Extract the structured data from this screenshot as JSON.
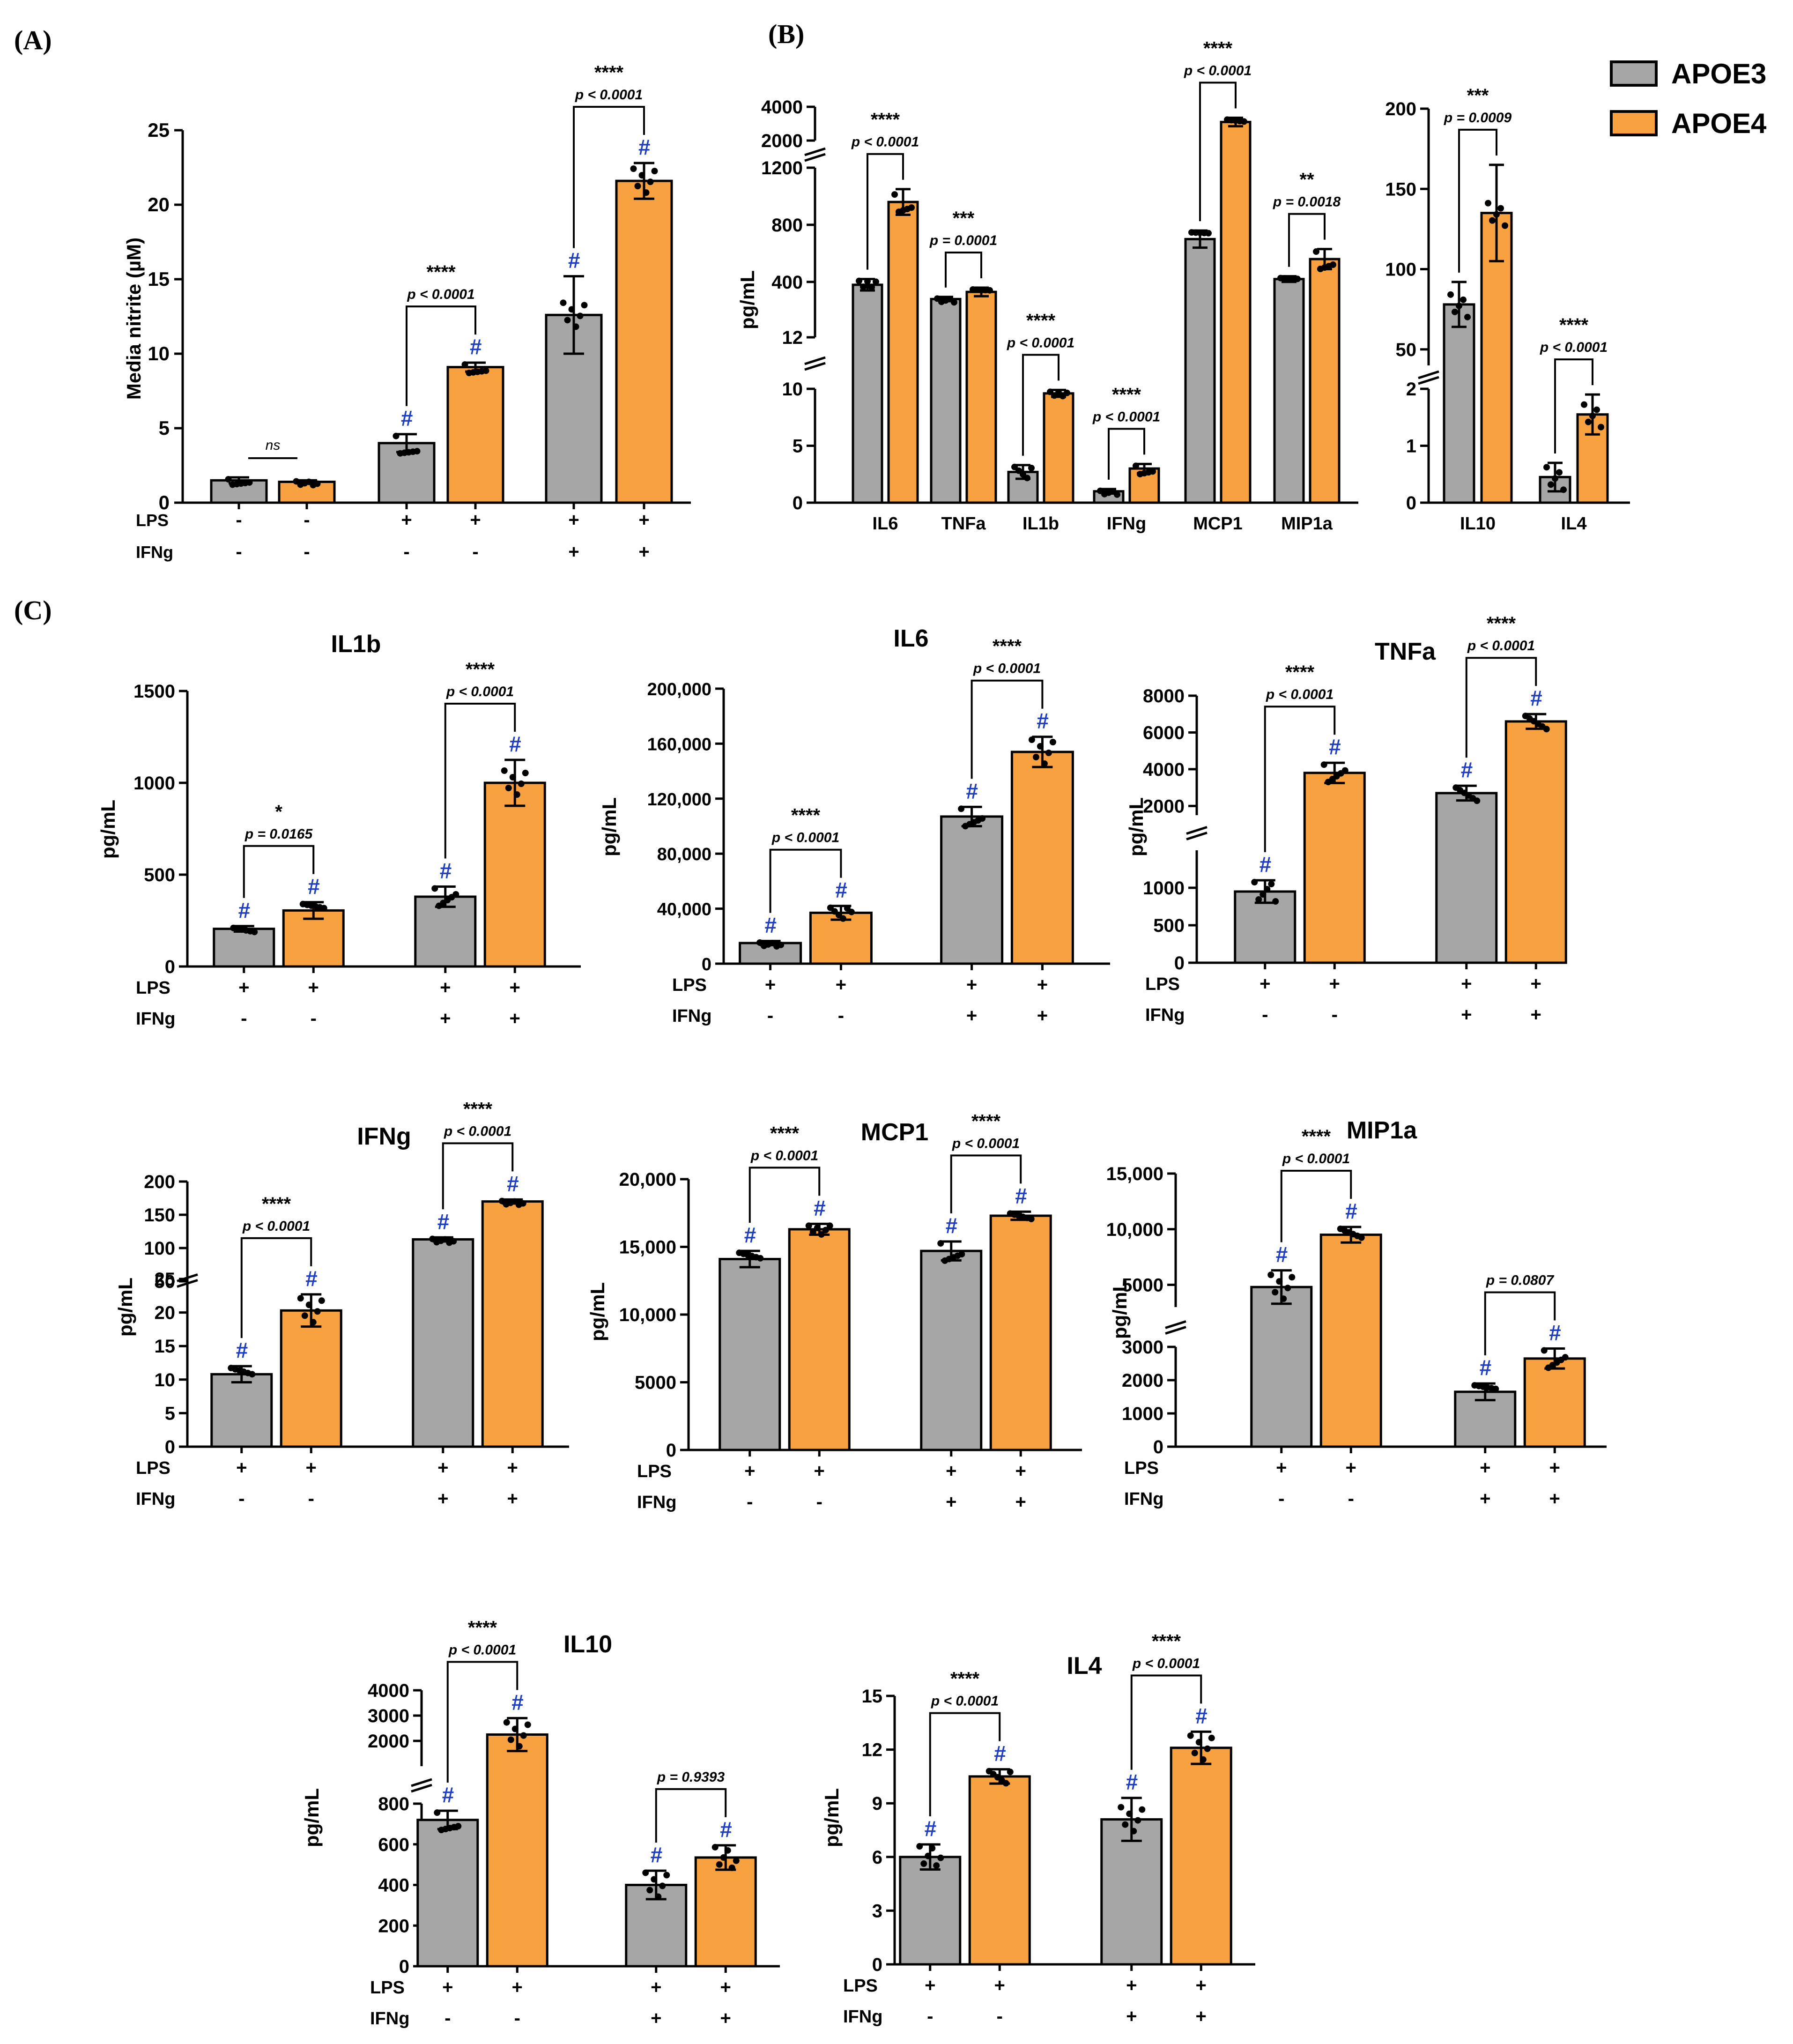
{
  "panel_labels": {
    "a": "(A)",
    "b": "(B)",
    "c": "(C)"
  },
  "legend": [
    {
      "name": "APOE3",
      "color": "#a6a6a6"
    },
    {
      "name": "APOE4",
      "color": "#f7a140"
    }
  ],
  "colors": {
    "apoe3": "#a6a6a6",
    "apoe4": "#f7a140",
    "hash": "#1f3fbf"
  },
  "hash_symbol": "#",
  "chart_data": [
    {
      "id": "A",
      "type": "bar",
      "title": "",
      "ylabel": "Media nitrite (µM)",
      "ylim": [
        0,
        25
      ],
      "yticks": [
        0,
        5,
        10,
        15,
        20,
        25
      ],
      "categories": [
        "- / -",
        "+ / -",
        "+ / +"
      ],
      "condition_rows": [
        {
          "label": "LPS",
          "values": [
            "-",
            "+",
            "+"
          ]
        },
        {
          "label": "IFNg",
          "values": [
            "-",
            "-",
            "+"
          ]
        }
      ],
      "series": [
        {
          "name": "APOE3",
          "values": [
            1.5,
            4.0,
            12.6
          ]
        },
        {
          "name": "APOE4",
          "values": [
            1.4,
            9.1,
            21.6
          ]
        }
      ],
      "errors": [
        [
          0.2,
          0.6,
          2.6
        ],
        [
          0.1,
          0.3,
          1.2
        ]
      ],
      "hash": [
        [
          false,
          true,
          true
        ],
        [
          false,
          true,
          true
        ]
      ],
      "comparisons": [
        {
          "stars": "ns",
          "p": ""
        },
        {
          "stars": "****",
          "p": "p < 0.0001"
        },
        {
          "stars": "****",
          "p": "p < 0.0001"
        }
      ]
    },
    {
      "id": "B1",
      "type": "bar",
      "title": "",
      "ylabel": "pg/mL",
      "categories": [
        "IL6",
        "TNFa",
        "IL1b",
        "IFNg",
        "MCP1",
        "MIP1a"
      ],
      "axis_segments": [
        {
          "range": [
            0,
            10
          ],
          "ticks": [
            "0",
            "5",
            "10"
          ]
        },
        {
          "range": [
            12,
            1200
          ],
          "ticks": [
            "12",
            "400",
            "800",
            "1200"
          ]
        },
        {
          "range": [
            2000,
            4000
          ],
          "ticks": [
            "2000",
            "4000"
          ]
        }
      ],
      "series": [
        {
          "name": "APOE3",
          "values": [
            380,
            280,
            2.7,
            1.0,
            700,
            420
          ]
        },
        {
          "name": "APOE4",
          "values": [
            960,
            330,
            9.6,
            3.0,
            3100,
            560
          ]
        }
      ],
      "errors": [
        [
          40,
          15,
          0.6,
          0.2,
          60,
          20
        ],
        [
          90,
          30,
          0.3,
          0.4,
          250,
          70
        ]
      ],
      "comparisons": [
        {
          "stars": "****",
          "p": "p < 0.0001"
        },
        {
          "stars": "***",
          "p": "p = 0.0001"
        },
        {
          "stars": "****",
          "p": "p < 0.0001"
        },
        {
          "stars": "****",
          "p": "p < 0.0001"
        },
        {
          "stars": "****",
          "p": "p < 0.0001"
        },
        {
          "stars": "**",
          "p": "p = 0.0018"
        }
      ]
    },
    {
      "id": "B2",
      "type": "bar",
      "title": "",
      "categories": [
        "IL10",
        "IL4"
      ],
      "axis_segments": [
        {
          "range": [
            0,
            2
          ],
          "ticks": [
            "0",
            "1",
            "2"
          ]
        },
        {
          "range": [
            40,
            200
          ],
          "ticks": [
            "50",
            "100",
            "150",
            "200"
          ]
        }
      ],
      "series": [
        {
          "name": "APOE3",
          "values": [
            78,
            0.45
          ]
        },
        {
          "name": "APOE4",
          "values": [
            135,
            1.55
          ]
        }
      ],
      "errors": [
        [
          14,
          0.25
        ],
        [
          30,
          0.35
        ]
      ],
      "comparisons": [
        {
          "stars": "***",
          "p": "p = 0.0009"
        },
        {
          "stars": "****",
          "p": "p < 0.0001"
        }
      ]
    },
    {
      "id": "IL1b",
      "type": "bar",
      "title": "IL1b",
      "ylabel": "pg/mL",
      "ylim": [
        0,
        1500
      ],
      "yticks": [
        "0",
        "500",
        "1000",
        "1500"
      ],
      "condition_rows": [
        {
          "label": "LPS",
          "values": [
            "+",
            "+"
          ]
        },
        {
          "label": "IFNg",
          "values": [
            "-",
            "+"
          ]
        }
      ],
      "series": [
        {
          "name": "APOE3",
          "values": [
            205,
            380
          ]
        },
        {
          "name": "APOE4",
          "values": [
            305,
            1000
          ]
        }
      ],
      "errors": [
        [
          15,
          55
        ],
        [
          45,
          125
        ]
      ],
      "comparisons": [
        {
          "stars": "*",
          "p": "p = 0.0165"
        },
        {
          "stars": "****",
          "p": "p < 0.0001"
        }
      ]
    },
    {
      "id": "IL6",
      "type": "bar",
      "title": "IL6",
      "ylabel": "pg/mL",
      "ylim": [
        0,
        200000
      ],
      "yticks": [
        "0",
        "40,000",
        "80,000",
        "120,000",
        "160,000",
        "200,000"
      ],
      "condition_rows": [
        {
          "label": "LPS",
          "values": [
            "+",
            "+"
          ]
        },
        {
          "label": "IFNg",
          "values": [
            "-",
            "+"
          ]
        }
      ],
      "series": [
        {
          "name": "APOE3",
          "values": [
            15000,
            107000
          ]
        },
        {
          "name": "APOE4",
          "values": [
            37000,
            154000
          ]
        }
      ],
      "errors": [
        [
          1500,
          7000
        ],
        [
          5000,
          11000
        ]
      ],
      "comparisons": [
        {
          "stars": "****",
          "p": "p < 0.0001"
        },
        {
          "stars": "****",
          "p": "p < 0.0001"
        }
      ]
    },
    {
      "id": "TNFa",
      "type": "bar",
      "title": "TNFa",
      "ylabel": "pg/mL",
      "axis_segments": [
        {
          "range": [
            0,
            1500
          ],
          "ticks": [
            "0",
            "500",
            "1000"
          ]
        },
        {
          "range": [
            1500,
            8000
          ],
          "ticks": [
            "2000",
            "4000",
            "6000",
            "8000"
          ]
        }
      ],
      "condition_rows": [
        {
          "label": "LPS",
          "values": [
            "+",
            "+"
          ]
        },
        {
          "label": "IFNg",
          "values": [
            "-",
            "+"
          ]
        }
      ],
      "series": [
        {
          "name": "APOE3",
          "values": [
            950,
            2700
          ]
        },
        {
          "name": "APOE4",
          "values": [
            3800,
            6600
          ]
        }
      ],
      "errors": [
        [
          150,
          400
        ],
        [
          550,
          400
        ]
      ],
      "comparisons": [
        {
          "stars": "****",
          "p": "p < 0.0001"
        },
        {
          "stars": "****",
          "p": "p < 0.0001"
        }
      ]
    },
    {
      "id": "IFNg",
      "type": "bar",
      "title": "IFNg",
      "ylabel": "pg/mL",
      "axis_segments": [
        {
          "range": [
            0,
            25
          ],
          "ticks": [
            "0",
            "5",
            "10",
            "15",
            "20",
            "25"
          ]
        },
        {
          "range": [
            50,
            200
          ],
          "ticks": [
            "50",
            "100",
            "150",
            "200"
          ]
        }
      ],
      "condition_rows": [
        {
          "label": "LPS",
          "values": [
            "+",
            "+"
          ]
        },
        {
          "label": "IFNg",
          "values": [
            "-",
            "+"
          ]
        }
      ],
      "series": [
        {
          "name": "APOE3",
          "values": [
            10.8,
            113
          ]
        },
        {
          "name": "APOE4",
          "values": [
            20.3,
            170
          ]
        }
      ],
      "errors": [
        [
          1.2,
          3
        ],
        [
          2.4,
          3
        ]
      ],
      "comparisons": [
        {
          "stars": "****",
          "p": "p < 0.0001"
        },
        {
          "stars": "****",
          "p": "p < 0.0001"
        }
      ]
    },
    {
      "id": "MCP1",
      "type": "bar",
      "title": "MCP1",
      "ylabel": "pg/mL",
      "ylim": [
        0,
        20000
      ],
      "yticks": [
        "0",
        "5000",
        "10,000",
        "15,000",
        "20,000"
      ],
      "condition_rows": [
        {
          "label": "LPS",
          "values": [
            "+",
            "+"
          ]
        },
        {
          "label": "IFNg",
          "values": [
            "-",
            "+"
          ]
        }
      ],
      "series": [
        {
          "name": "APOE3",
          "values": [
            14100,
            14700
          ]
        },
        {
          "name": "APOE4",
          "values": [
            16300,
            17300
          ]
        }
      ],
      "errors": [
        [
          600,
          700
        ],
        [
          400,
          300
        ]
      ],
      "comparisons": [
        {
          "stars": "****",
          "p": "p < 0.0001"
        },
        {
          "stars": "****",
          "p": "p < 0.0001"
        }
      ]
    },
    {
      "id": "MIP1a",
      "type": "bar",
      "title": "MIP1a",
      "ylabel": "pg/mL",
      "axis_segments": [
        {
          "range": [
            0,
            3000
          ],
          "ticks": [
            "0",
            "1000",
            "2000",
            "3000"
          ]
        },
        {
          "range": [
            3000,
            15000
          ],
          "ticks": [
            "5000",
            "10,000",
            "15,000"
          ]
        }
      ],
      "condition_rows": [
        {
          "label": "LPS",
          "values": [
            "+",
            "+"
          ]
        },
        {
          "label": "IFNg",
          "values": [
            "-",
            "+"
          ]
        }
      ],
      "series": [
        {
          "name": "APOE3",
          "values": [
            4800,
            1650
          ]
        },
        {
          "name": "APOE4",
          "values": [
            9500,
            2650
          ]
        }
      ],
      "errors": [
        [
          1500,
          250
        ],
        [
          700,
          300
        ]
      ],
      "comparisons": [
        {
          "stars": "****",
          "p": "p < 0.0001"
        },
        {
          "stars": "",
          "p": "p = 0.0807"
        }
      ]
    },
    {
      "id": "IL10",
      "type": "bar",
      "title": "IL10",
      "ylabel": "pg/mL",
      "axis_segments": [
        {
          "range": [
            0,
            800
          ],
          "ticks": [
            "0",
            "200",
            "400",
            "600",
            "800"
          ]
        },
        {
          "range": [
            1000,
            4000
          ],
          "ticks": [
            "2000",
            "3000",
            "4000"
          ]
        }
      ],
      "condition_rows": [
        {
          "label": "LPS",
          "values": [
            "+",
            "+"
          ]
        },
        {
          "label": "IFNg",
          "values": [
            "-",
            "+"
          ]
        }
      ],
      "series": [
        {
          "name": "APOE3",
          "values": [
            720,
            400
          ]
        },
        {
          "name": "APOE4",
          "values": [
            2250,
            535
          ]
        }
      ],
      "errors": [
        [
          45,
          70
        ],
        [
          650,
          60
        ]
      ],
      "comparisons": [
        {
          "stars": "****",
          "p": "p < 0.0001"
        },
        {
          "stars": "",
          "p": "p = 0.9393"
        }
      ]
    },
    {
      "id": "IL4",
      "type": "bar",
      "title": "IL4",
      "ylabel": "pg/mL",
      "ylim": [
        0,
        15
      ],
      "yticks": [
        "0",
        "3",
        "6",
        "9",
        "12",
        "15"
      ],
      "condition_rows": [
        {
          "label": "LPS",
          "values": [
            "+",
            "+"
          ]
        },
        {
          "label": "IFNg",
          "values": [
            "-",
            "+"
          ]
        }
      ],
      "series": [
        {
          "name": "APOE3",
          "values": [
            6.0,
            8.1
          ]
        },
        {
          "name": "APOE4",
          "values": [
            10.5,
            12.1
          ]
        }
      ],
      "errors": [
        [
          0.7,
          1.2
        ],
        [
          0.4,
          0.9
        ]
      ],
      "comparisons": [
        {
          "stars": "****",
          "p": "p < 0.0001"
        },
        {
          "stars": "****",
          "p": "p < 0.0001"
        }
      ]
    }
  ]
}
